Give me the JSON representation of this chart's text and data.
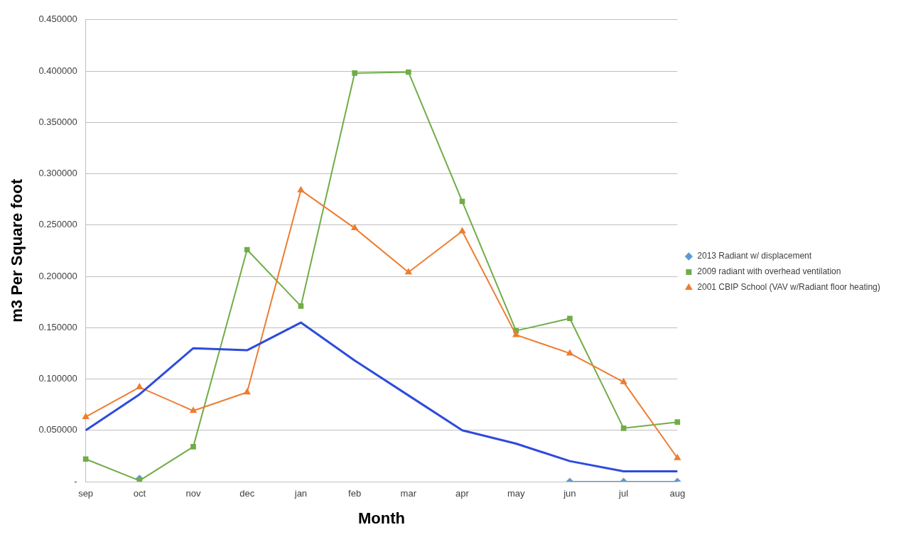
{
  "chart_data": {
    "type": "line",
    "xlabel": "Month",
    "ylabel": "m3 Per Square foot",
    "categories": [
      "sep",
      "oct",
      "nov",
      "dec",
      "jan",
      "feb",
      "mar",
      "apr",
      "may",
      "jun",
      "jul",
      "aug"
    ],
    "series": [
      {
        "name": "2013 Radiant w/ displacement",
        "color": "#5b9bd5",
        "marker": "diamond",
        "values": [
          null,
          0.003,
          null,
          null,
          null,
          null,
          null,
          null,
          null,
          0,
          0,
          0
        ]
      },
      {
        "name": "2009 radiant with overhead ventilation",
        "color": "#70ad47",
        "marker": "square",
        "values": [
          0.022,
          0.001,
          0.034,
          0.226,
          0.171,
          0.398,
          0.399,
          0.273,
          0.147,
          0.159,
          0.052,
          0.058
        ]
      },
      {
        "name": "2001 CBIP School (VAV w/Radiant floor heating)",
        "color": "#ed7d31",
        "marker": "triangle",
        "values": [
          0.063,
          0.092,
          0.069,
          0.087,
          0.284,
          0.247,
          0.204,
          0.244,
          0.143,
          0.125,
          0.097,
          0.023
        ]
      },
      {
        "color": "#2e4bdb",
        "marker": "none",
        "values": [
          0.05,
          0.085,
          0.13,
          0.128,
          0.155,
          0.118,
          0.084,
          0.05,
          0.037,
          0.02,
          0.01,
          0.01
        ]
      }
    ],
    "ylim": [
      0,
      0.45
    ],
    "yticks": [
      {
        "value": 0,
        "label": "-"
      },
      {
        "value": 0.05,
        "label": "0.050000"
      },
      {
        "value": 0.1,
        "label": "0.100000"
      },
      {
        "value": 0.15,
        "label": "0.150000"
      },
      {
        "value": 0.2,
        "label": "0.200000"
      },
      {
        "value": 0.25,
        "label": "0.250000"
      },
      {
        "value": 0.3,
        "label": "0.300000"
      },
      {
        "value": 0.35,
        "label": "0.350000"
      },
      {
        "value": 0.4,
        "label": "0.400000"
      },
      {
        "value": 0.45,
        "label": "0.450000"
      }
    ],
    "grid": "y",
    "legend": "right"
  }
}
